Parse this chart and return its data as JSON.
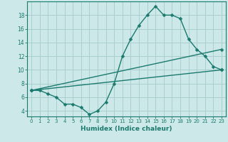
{
  "xlabel": "Humidex (Indice chaleur)",
  "bg_color": "#cce8e8",
  "grid_color": "#aacfcf",
  "line_color": "#1a7a6e",
  "xlim": [
    -0.5,
    23.5
  ],
  "ylim": [
    3.2,
    20.0
  ],
  "xticks": [
    0,
    1,
    2,
    3,
    4,
    5,
    6,
    7,
    8,
    9,
    10,
    11,
    12,
    13,
    14,
    15,
    16,
    17,
    18,
    19,
    20,
    21,
    22,
    23
  ],
  "yticks": [
    4,
    6,
    8,
    10,
    12,
    14,
    16,
    18
  ],
  "series1_x": [
    0,
    1,
    2,
    3,
    4,
    5,
    6,
    7,
    8,
    9,
    10,
    11,
    12,
    13,
    14,
    15,
    16,
    17,
    18,
    19,
    20,
    21,
    22,
    23
  ],
  "series1_y": [
    7.0,
    7.0,
    6.5,
    6.0,
    5.0,
    5.0,
    4.5,
    3.5,
    4.0,
    5.3,
    8.0,
    12.0,
    14.5,
    16.5,
    18.0,
    19.3,
    18.0,
    18.0,
    17.5,
    14.5,
    13.0,
    12.0,
    10.5,
    10.0
  ],
  "series2_x": [
    0,
    23
  ],
  "series2_y": [
    7.0,
    10.0
  ],
  "series3_x": [
    0,
    23
  ],
  "series3_y": [
    7.0,
    13.0
  ],
  "marker_size": 2.5,
  "line_width": 1.0,
  "tick_fontsize": 5.0,
  "xlabel_fontsize": 6.5
}
